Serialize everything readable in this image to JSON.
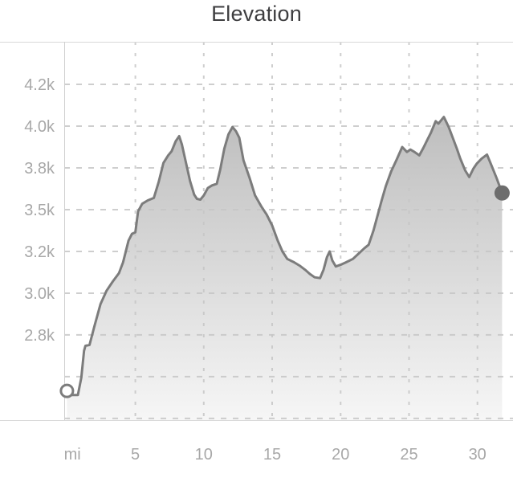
{
  "chart_data": {
    "type": "area",
    "title": "Elevation",
    "x_unit_label": "mi",
    "x_ticks": [
      5,
      10,
      15,
      20,
      25,
      30
    ],
    "y_ticks": [
      {
        "value": 4250,
        "label": "4.2k"
      },
      {
        "value": 4000,
        "label": "4.0k"
      },
      {
        "value": 3750,
        "label": "3.8k"
      },
      {
        "value": 3500,
        "label": "3.5k"
      },
      {
        "value": 3250,
        "label": "3.2k"
      },
      {
        "value": 3000,
        "label": "3.0k"
      },
      {
        "value": 2750,
        "label": "2.8k"
      }
    ],
    "y_gridlines": [
      4250,
      4000,
      3750,
      3500,
      3250,
      3000,
      2750,
      2500,
      2250
    ],
    "x_range": [
      -0.2,
      32.6
    ],
    "y_range": [
      2240,
      4505
    ],
    "grid": "dashed",
    "legend": "none",
    "series_name": "elevation-profile",
    "points": [
      [
        0.0,
        2415
      ],
      [
        0.3,
        2390
      ],
      [
        0.8,
        2390
      ],
      [
        1.05,
        2495
      ],
      [
        1.25,
        2655
      ],
      [
        1.35,
        2685
      ],
      [
        1.65,
        2690
      ],
      [
        2.0,
        2800
      ],
      [
        2.45,
        2935
      ],
      [
        2.9,
        3015
      ],
      [
        3.35,
        3070
      ],
      [
        3.8,
        3120
      ],
      [
        4.1,
        3185
      ],
      [
        4.5,
        3315
      ],
      [
        4.75,
        3355
      ],
      [
        5.0,
        3365
      ],
      [
        5.2,
        3490
      ],
      [
        5.5,
        3535
      ],
      [
        5.9,
        3555
      ],
      [
        6.35,
        3570
      ],
      [
        6.7,
        3665
      ],
      [
        7.05,
        3780
      ],
      [
        7.4,
        3825
      ],
      [
        7.65,
        3850
      ],
      [
        7.95,
        3910
      ],
      [
        8.2,
        3940
      ],
      [
        8.4,
        3890
      ],
      [
        8.7,
        3780
      ],
      [
        9.0,
        3670
      ],
      [
        9.3,
        3590
      ],
      [
        9.5,
        3565
      ],
      [
        9.75,
        3560
      ],
      [
        10.0,
        3585
      ],
      [
        10.3,
        3630
      ],
      [
        10.6,
        3645
      ],
      [
        10.95,
        3655
      ],
      [
        11.2,
        3740
      ],
      [
        11.5,
        3865
      ],
      [
        11.8,
        3950
      ],
      [
        12.1,
        3995
      ],
      [
        12.35,
        3970
      ],
      [
        12.6,
        3930
      ],
      [
        12.9,
        3795
      ],
      [
        13.35,
        3690
      ],
      [
        13.75,
        3585
      ],
      [
        14.2,
        3520
      ],
      [
        14.6,
        3470
      ],
      [
        15.0,
        3405
      ],
      [
        15.4,
        3315
      ],
      [
        15.75,
        3250
      ],
      [
        16.1,
        3205
      ],
      [
        16.6,
        3185
      ],
      [
        17.0,
        3165
      ],
      [
        17.4,
        3140
      ],
      [
        17.75,
        3115
      ],
      [
        18.1,
        3095
      ],
      [
        18.5,
        3090
      ],
      [
        18.75,
        3140
      ],
      [
        19.0,
        3215
      ],
      [
        19.2,
        3250
      ],
      [
        19.4,
        3195
      ],
      [
        19.65,
        3160
      ],
      [
        20.0,
        3170
      ],
      [
        20.4,
        3185
      ],
      [
        20.9,
        3205
      ],
      [
        21.35,
        3240
      ],
      [
        21.75,
        3270
      ],
      [
        22.05,
        3290
      ],
      [
        22.4,
        3375
      ],
      [
        22.7,
        3465
      ],
      [
        23.0,
        3555
      ],
      [
        23.3,
        3640
      ],
      [
        23.7,
        3730
      ],
      [
        24.1,
        3800
      ],
      [
        24.5,
        3875
      ],
      [
        24.85,
        3845
      ],
      [
        25.1,
        3860
      ],
      [
        25.4,
        3845
      ],
      [
        25.75,
        3825
      ],
      [
        26.05,
        3870
      ],
      [
        26.35,
        3920
      ],
      [
        26.6,
        3960
      ],
      [
        26.95,
        4030
      ],
      [
        27.15,
        4015
      ],
      [
        27.55,
        4055
      ],
      [
        27.9,
        3995
      ],
      [
        28.2,
        3930
      ],
      [
        28.5,
        3865
      ],
      [
        28.75,
        3805
      ],
      [
        29.1,
        3735
      ],
      [
        29.4,
        3695
      ],
      [
        29.7,
        3745
      ],
      [
        29.95,
        3775
      ],
      [
        30.3,
        3805
      ],
      [
        30.7,
        3830
      ],
      [
        31.05,
        3760
      ],
      [
        31.4,
        3690
      ],
      [
        31.8,
        3600
      ]
    ],
    "start_marker": {
      "mile": 0.0,
      "feet": 2415,
      "style": "open-circle"
    },
    "end_marker": {
      "mile": 31.8,
      "feet": 3600,
      "style": "filled-circle"
    },
    "colors": {
      "line": "#7c7c7c",
      "fill_top": "#b0b0b0",
      "fill_bottom": "#f6f6f6",
      "grid": "#c6c6c6",
      "border": "#d9d9d9",
      "axis": "#cfcfcf",
      "tick_label": "#a8a8a8",
      "title": "#3e3e40",
      "end_dot": "#6d6d6d",
      "start_circle_fill": "#ffffff",
      "background": "#ffffff"
    }
  }
}
